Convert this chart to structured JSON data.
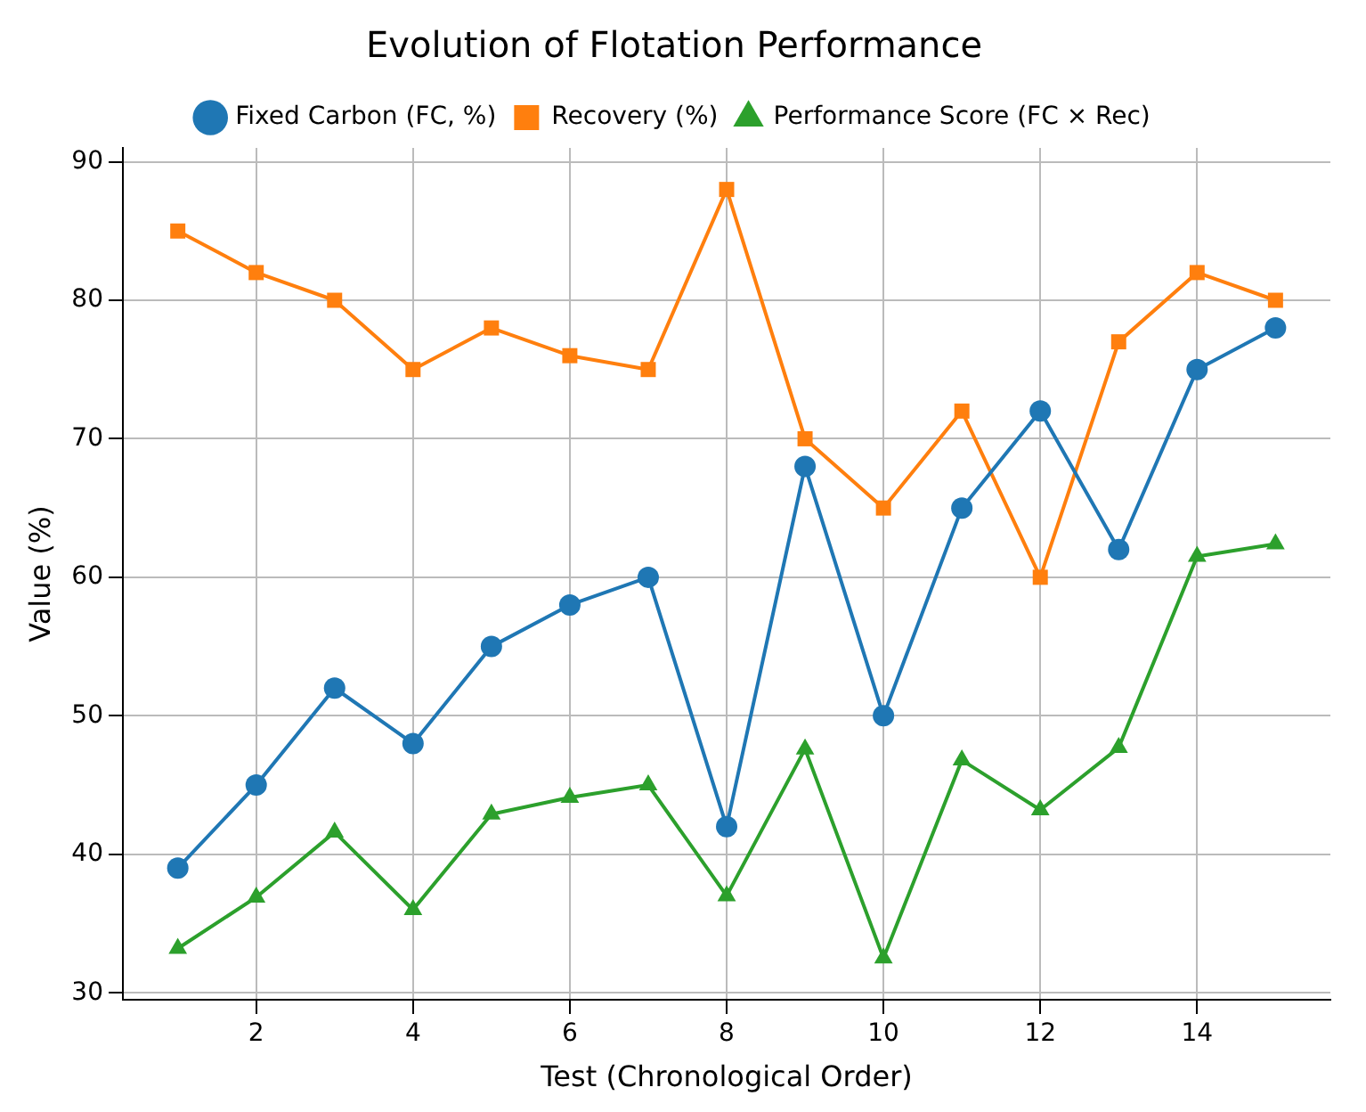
{
  "chart_data": {
    "type": "line",
    "title": "Evolution of Flotation Performance",
    "xlabel": "Test (Chronological Order)",
    "ylabel": "Value (%)",
    "x": [
      1,
      2,
      3,
      4,
      5,
      6,
      7,
      8,
      9,
      10,
      11,
      12,
      13,
      14,
      15
    ],
    "series": [
      {
        "name": "Fixed Carbon (FC, %)",
        "color": "#1f77b4",
        "marker": "circle",
        "values": [
          39,
          45,
          52,
          48,
          55,
          58,
          60,
          42,
          68,
          50,
          65,
          72,
          62,
          75,
          78
        ]
      },
      {
        "name": "Recovery (%)",
        "color": "#ff7f0e",
        "marker": "square",
        "values": [
          85,
          82,
          80,
          75,
          78,
          76,
          75,
          88,
          70,
          65,
          72,
          60,
          77,
          82,
          80
        ]
      },
      {
        "name": "Performance Score (FC × Rec)",
        "color": "#2ca02c",
        "marker": "triangle",
        "values": [
          33.2,
          36.9,
          41.6,
          36,
          42.9,
          44.1,
          45,
          37,
          47.6,
          32.5,
          46.8,
          43.2,
          47.7,
          61.5,
          62.4
        ]
      }
    ],
    "xlim": [
      0.3,
      15.7
    ],
    "xticks": [
      2,
      4,
      6,
      8,
      10,
      12,
      14
    ],
    "ylim": [
      29.5,
      91
    ],
    "yticks": [
      30,
      40,
      50,
      60,
      70,
      80,
      90
    ],
    "grid": true,
    "legend": "top",
    "line_style": "solid"
  }
}
